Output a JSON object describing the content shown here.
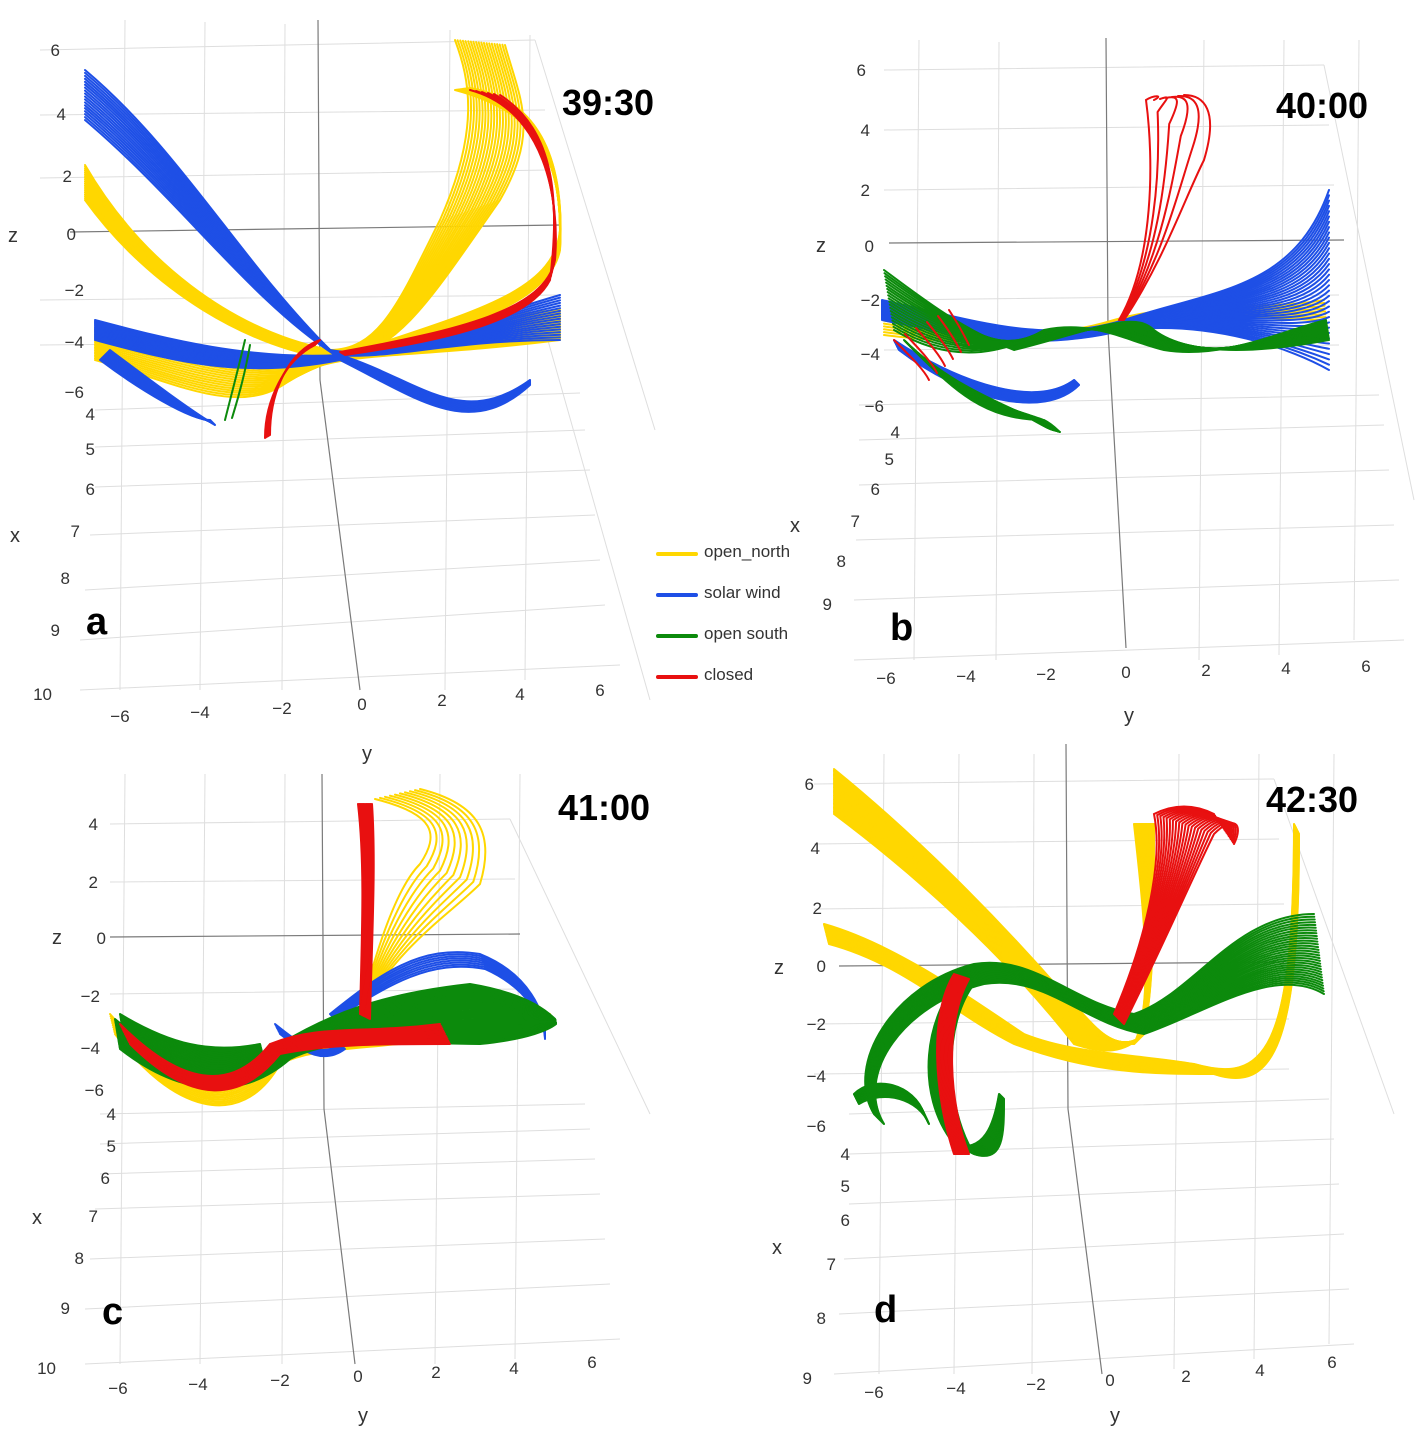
{
  "colors": {
    "open_north": "#FFD700",
    "solar_wind": "#1E4FE6",
    "open_south": "#0C8A0C",
    "closed": "#E81010",
    "grid": "#dedede",
    "axis": "#7a7a7a"
  },
  "legend": {
    "items": [
      {
        "key": "open_north",
        "label": "open_north"
      },
      {
        "key": "solar_wind",
        "label": "solar wind"
      },
      {
        "key": "open_south",
        "label": "open south"
      },
      {
        "key": "closed",
        "label": "closed"
      }
    ]
  },
  "chart_data": [
    {
      "type": "3d-line",
      "panel_label": "a",
      "time_label": "39:30",
      "xlabel": "x",
      "ylabel": "y",
      "zlabel": "z",
      "x_ticks": [
        "4",
        "5",
        "6",
        "7",
        "8",
        "9",
        "10"
      ],
      "y_ticks": [
        "−6",
        "−4",
        "−2",
        "0",
        "2",
        "4",
        "6"
      ],
      "z_ticks": [
        "6",
        "4",
        "2",
        "0",
        "−2",
        "−4",
        "−6"
      ],
      "series": [
        {
          "name": "open_north",
          "line_count": 60
        },
        {
          "name": "solar wind",
          "line_count": 55
        },
        {
          "name": "open south",
          "line_count": 2
        },
        {
          "name": "closed",
          "line_count": 12
        }
      ]
    },
    {
      "type": "3d-line",
      "panel_label": "b",
      "time_label": "40:00",
      "xlabel": "x",
      "ylabel": "y",
      "zlabel": "z",
      "x_ticks": [
        "4",
        "5",
        "6",
        "7",
        "8",
        "9"
      ],
      "y_ticks": [
        "−6",
        "−4",
        "−2",
        "0",
        "2",
        "4",
        "6"
      ],
      "z_ticks": [
        "6",
        "4",
        "2",
        "0",
        "−2",
        "−4",
        "−6"
      ],
      "series": [
        {
          "name": "open_north",
          "line_count": 8
        },
        {
          "name": "solar wind",
          "line_count": 70
        },
        {
          "name": "open south",
          "line_count": 40
        },
        {
          "name": "closed",
          "line_count": 12
        }
      ]
    },
    {
      "type": "3d-line",
      "panel_label": "c",
      "time_label": "41:00",
      "xlabel": "x",
      "ylabel": "y",
      "zlabel": "z",
      "x_ticks": [
        "4",
        "5",
        "6",
        "7",
        "8",
        "9",
        "10"
      ],
      "y_ticks": [
        "−6",
        "−4",
        "−2",
        "0",
        "2",
        "4",
        "6"
      ],
      "z_ticks": [
        "4",
        "2",
        "0",
        "−2",
        "−4",
        "−6"
      ],
      "series": [
        {
          "name": "open_north",
          "line_count": 20
        },
        {
          "name": "solar wind",
          "line_count": 15
        },
        {
          "name": "open south",
          "line_count": 80
        },
        {
          "name": "closed",
          "line_count": 25
        }
      ]
    },
    {
      "type": "3d-line",
      "panel_label": "d",
      "time_label": "42:30",
      "xlabel": "x",
      "ylabel": "y",
      "zlabel": "z",
      "x_ticks": [
        "4",
        "5",
        "6",
        "7",
        "8",
        "9"
      ],
      "y_ticks": [
        "−6",
        "−4",
        "−2",
        "0",
        "2",
        "4",
        "6"
      ],
      "z_ticks": [
        "6",
        "4",
        "2",
        "0",
        "−2",
        "−4",
        "−6"
      ],
      "series": [
        {
          "name": "open_north",
          "line_count": 70
        },
        {
          "name": "solar wind",
          "line_count": 0
        },
        {
          "name": "open south",
          "line_count": 90
        },
        {
          "name": "closed",
          "line_count": 40
        }
      ]
    }
  ]
}
